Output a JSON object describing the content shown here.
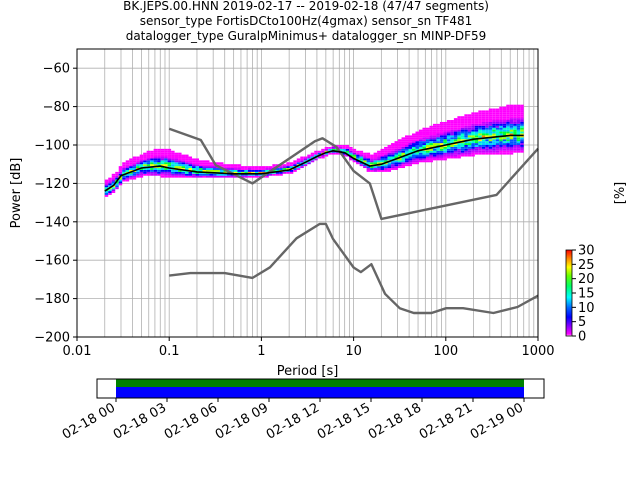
{
  "chart_data": {
    "type": "heatmap",
    "title_lines": [
      "BK.JEPS.00.HNN   2019-02-17 -- 2019-02-18  (47/47 segments)",
      "sensor_type FortisDCto100Hz(4gmax) sensor_sn TF481",
      "datalogger_type GuralpMinimus+ datalogger_sn MINP-DF59"
    ],
    "xlabel": "Period [s]",
    "ylabel": "Power [dB]",
    "xscale": "log",
    "xlim": [
      0.01,
      1000
    ],
    "ylim": [
      -200,
      -50
    ],
    "xticks": [
      {
        "v": 0.01,
        "label": "0.01"
      },
      {
        "v": 0.1,
        "label": "0.1"
      },
      {
        "v": 1,
        "label": "1"
      },
      {
        "v": 10,
        "label": "10"
      },
      {
        "v": 100,
        "label": "100"
      },
      {
        "v": 1000,
        "label": "1000"
      }
    ],
    "yticks": [
      {
        "v": -200,
        "label": "−200"
      },
      {
        "v": -180,
        "label": "−180"
      },
      {
        "v": -160,
        "label": "−160"
      },
      {
        "v": -140,
        "label": "−140"
      },
      {
        "v": -120,
        "label": "−120"
      },
      {
        "v": -100,
        "label": "−100"
      },
      {
        "v": -80,
        "label": "−80"
      },
      {
        "v": -60,
        "label": "−60"
      }
    ],
    "grid": true,
    "colorbar": {
      "label": "[%]",
      "range": [
        0,
        30
      ],
      "ticks": [
        {
          "v": 0,
          "label": "0"
        },
        {
          "v": 5,
          "label": "5"
        },
        {
          "v": 10,
          "label": "10"
        },
        {
          "v": 15,
          "label": "15"
        },
        {
          "v": 20,
          "label": "20"
        },
        {
          "v": 25,
          "label": "25"
        },
        {
          "v": 30,
          "label": "30"
        }
      ]
    },
    "noise_model_high": {
      "x": [
        0.1,
        0.22,
        0.32,
        0.8,
        3.8,
        4.6,
        6.5,
        10,
        15,
        20,
        354.8,
        10000
      ],
      "y": [
        -91.5,
        -97.4,
        -110.5,
        -120,
        -98,
        -96.5,
        -101,
        -113.5,
        -120,
        -138.5,
        -126,
        -48.5
      ]
    },
    "noise_model_low": {
      "x": [
        0.1,
        0.17,
        0.4,
        0.8,
        1.24,
        2.4,
        4.3,
        5,
        6,
        10,
        12,
        15.6,
        21.9,
        31.6,
        45,
        70,
        101,
        154,
        328,
        600,
        10000
      ],
      "y": [
        -168,
        -166.7,
        -166.7,
        -169.2,
        -163.7,
        -148.6,
        -141.1,
        -141.1,
        -149,
        -163.8,
        -166.2,
        -162.1,
        -177.5,
        -185,
        -187.5,
        -187.5,
        -185,
        -185,
        -187.5,
        -184.4,
        -151.9
      ]
    },
    "mode_curve": {
      "x": [
        0.02,
        0.025,
        0.03,
        0.05,
        0.08,
        0.1,
        0.2,
        0.5,
        1,
        2,
        3,
        4,
        5,
        6,
        8,
        10,
        15,
        20,
        30,
        50,
        100,
        200,
        500,
        700
      ],
      "y": [
        -124,
        -121,
        -116,
        -112,
        -111,
        -112,
        -114,
        -115,
        -115,
        -113,
        -109,
        -106,
        -104,
        -103,
        -104,
        -107,
        -111,
        -110,
        -107,
        -103,
        -100,
        -97,
        -95,
        -95
      ]
    },
    "histogram_spread_db": {
      "x": [
        0.02,
        0.025,
        0.03,
        0.05,
        0.08,
        0.1,
        0.2,
        0.5,
        1,
        2,
        3,
        4,
        5,
        6,
        8,
        10,
        15,
        20,
        30,
        50,
        100,
        200,
        500,
        700
      ],
      "spread": [
        3,
        3,
        3,
        4,
        5,
        5,
        3,
        2,
        1.5,
        1.5,
        1.5,
        1,
        1,
        1,
        1.5,
        2,
        3,
        4,
        5,
        6,
        7,
        8,
        9,
        9
      ]
    },
    "timeline": {
      "ticks": [
        "02-18 00",
        "02-18 03",
        "02-18 06",
        "02-18 09",
        "02-18 12",
        "02-18 15",
        "02-18 18",
        "02-18 21",
        "02-19 00"
      ],
      "coverage_colors": [
        "#008000",
        "#0000ff"
      ]
    }
  }
}
